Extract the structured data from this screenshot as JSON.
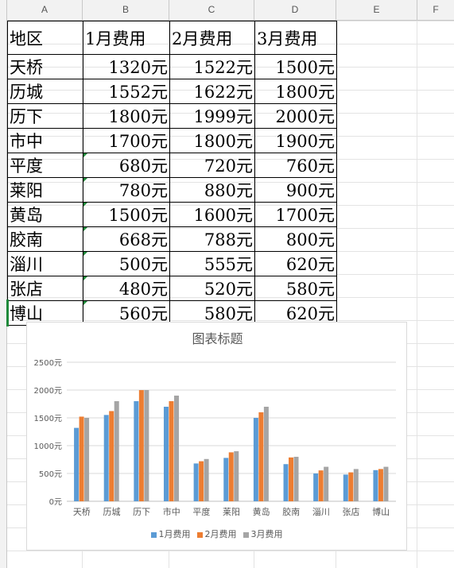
{
  "columns": [
    "A",
    "B",
    "C",
    "D",
    "E",
    "F"
  ],
  "table": {
    "header": [
      "地区",
      "1月费用",
      "2月费用",
      "3月费用"
    ],
    "rows": [
      {
        "name": "天桥",
        "jan": "1320元",
        "feb": "1522元",
        "mar": "1500元",
        "flag": false
      },
      {
        "name": "历城",
        "jan": "1552元",
        "feb": "1622元",
        "mar": "1800元",
        "flag": false
      },
      {
        "name": "历下",
        "jan": "1800元",
        "feb": "1999元",
        "mar": "2000元",
        "flag": false
      },
      {
        "name": "市中",
        "jan": "1700元",
        "feb": "1800元",
        "mar": "1900元",
        "flag": false
      },
      {
        "name": "平度",
        "jan": "680元",
        "feb": "720元",
        "mar": "760元",
        "flag": true
      },
      {
        "name": "莱阳",
        "jan": "780元",
        "feb": "880元",
        "mar": "900元",
        "flag": true
      },
      {
        "name": "黄岛",
        "jan": "1500元",
        "feb": "1600元",
        "mar": "1700元",
        "flag": true
      },
      {
        "name": "胶南",
        "jan": "668元",
        "feb": "788元",
        "mar": "800元",
        "flag": true
      },
      {
        "name": "淄川",
        "jan": "500元",
        "feb": "555元",
        "mar": "620元",
        "flag": true
      },
      {
        "name": "张店",
        "jan": "480元",
        "feb": "520元",
        "mar": "580元",
        "flag": true
      },
      {
        "name": "博山",
        "jan": "560元",
        "feb": "580元",
        "mar": "620元",
        "flag": true
      }
    ]
  },
  "colors": {
    "series": [
      "#5b9bd5",
      "#ed7d31",
      "#a5a5a5"
    ],
    "selection": "#1e8a3a"
  },
  "chart_data": {
    "type": "bar",
    "title": "图表标题",
    "categories": [
      "天桥",
      "历城",
      "历下",
      "市中",
      "平度",
      "莱阳",
      "黄岛",
      "胶南",
      "淄川",
      "张店",
      "博山"
    ],
    "series": [
      {
        "name": "1月费用",
        "values": [
          1320,
          1552,
          1800,
          1700,
          680,
          780,
          1500,
          668,
          500,
          480,
          560
        ]
      },
      {
        "name": "2月费用",
        "values": [
          1522,
          1622,
          1999,
          1800,
          720,
          880,
          1600,
          788,
          555,
          520,
          580
        ]
      },
      {
        "name": "3月费用",
        "values": [
          1500,
          1800,
          2000,
          1900,
          760,
          900,
          1700,
          800,
          620,
          580,
          620
        ]
      }
    ],
    "ylim": [
      0,
      2500
    ],
    "yticks": [
      "0元",
      "500元",
      "1000元",
      "1500元",
      "2000元",
      "2500元"
    ],
    "grid": true,
    "legend": "bottom"
  }
}
